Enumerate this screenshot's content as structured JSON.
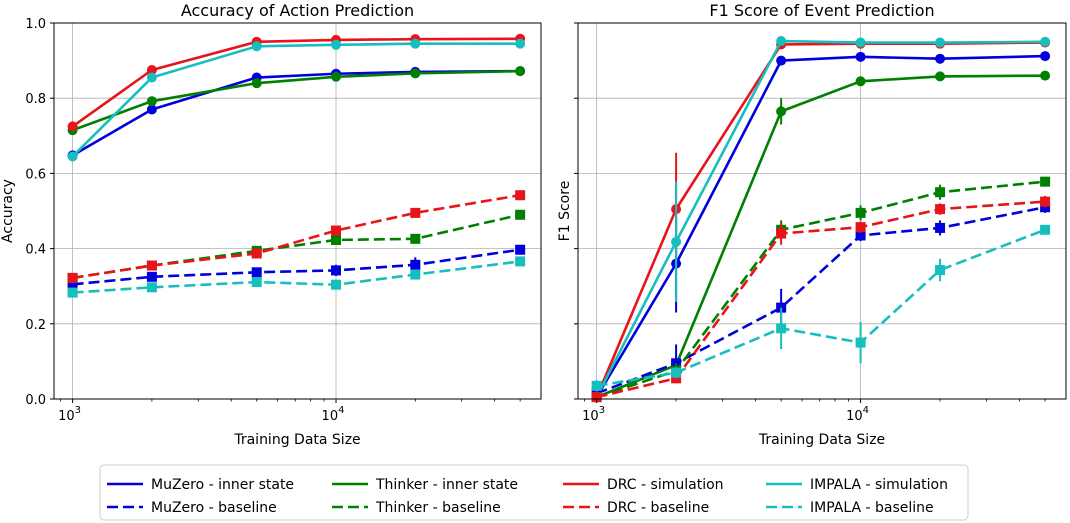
{
  "chart_data": [
    {
      "type": "line",
      "title": "Accuracy of Action Prediction",
      "xlabel": "Training Data Size",
      "ylabel": "Accuracy",
      "xscale": "log",
      "xlim": [
        850,
        60000
      ],
      "ylim": [
        0,
        1.0
      ],
      "xticks": [
        {
          "value": 1000,
          "base": "10",
          "exp": "3"
        },
        {
          "value": 10000,
          "base": "10",
          "exp": "4"
        }
      ],
      "yticks": [
        "0.0",
        "0.2",
        "0.4",
        "0.6",
        "0.8",
        "1.0"
      ],
      "grid": true,
      "x": [
        1000,
        2000,
        5000,
        10000,
        20000,
        50000
      ],
      "series": [
        {
          "name": "MuZero - inner state",
          "color": "#0000dd",
          "style": "solid",
          "marker": "circle",
          "values": [
            0.648,
            0.77,
            0.855,
            0.865,
            0.87,
            0.872
          ],
          "err": [
            0,
            0,
            0,
            0,
            0,
            0
          ]
        },
        {
          "name": "Thinker - inner state",
          "color": "#008000",
          "style": "solid",
          "marker": "circle",
          "values": [
            0.715,
            0.792,
            0.84,
            0.857,
            0.866,
            0.872
          ],
          "err": [
            0,
            0,
            0,
            0,
            0,
            0
          ]
        },
        {
          "name": "DRC - simulation",
          "color": "#e8141b",
          "style": "solid",
          "marker": "circle",
          "values": [
            0.725,
            0.875,
            0.95,
            0.955,
            0.957,
            0.958
          ],
          "err": [
            0,
            0,
            0,
            0,
            0,
            0
          ]
        },
        {
          "name": "IMPALA - simulation",
          "color": "#17bebe",
          "style": "solid",
          "marker": "circle",
          "values": [
            0.645,
            0.855,
            0.938,
            0.942,
            0.945,
            0.945
          ],
          "err": [
            0,
            0,
            0,
            0,
            0,
            0
          ]
        },
        {
          "name": "MuZero - baseline",
          "color": "#0000dd",
          "style": "dashed",
          "marker": "square",
          "values": [
            0.305,
            0.325,
            0.337,
            0.342,
            0.357,
            0.397
          ],
          "err": [
            0,
            0,
            0.012,
            0.015,
            0.02,
            0
          ]
        },
        {
          "name": "Thinker - baseline",
          "color": "#008000",
          "style": "dashed",
          "marker": "square",
          "values": [
            0.322,
            0.355,
            0.394,
            0.423,
            0.426,
            0.49
          ],
          "err": [
            0,
            0,
            0,
            0,
            0,
            0
          ]
        },
        {
          "name": "DRC - baseline",
          "color": "#e8141b",
          "style": "dashed",
          "marker": "square",
          "values": [
            0.322,
            0.355,
            0.387,
            0.448,
            0.495,
            0.542
          ],
          "err": [
            0,
            0,
            0,
            0,
            0,
            0
          ]
        },
        {
          "name": "IMPALA - baseline",
          "color": "#17bebe",
          "style": "dashed",
          "marker": "square",
          "values": [
            0.283,
            0.297,
            0.311,
            0.304,
            0.331,
            0.366
          ],
          "err": [
            0,
            0,
            0,
            0,
            0,
            0
          ]
        }
      ]
    },
    {
      "type": "line",
      "title": "F1 Score of Event Prediction",
      "xlabel": "Training Data Size",
      "ylabel": "F1 Score",
      "xscale": "log",
      "xlim": [
        850,
        60000
      ],
      "ylim": [
        0,
        1.0
      ],
      "xticks": [
        {
          "value": 1000,
          "base": "10",
          "exp": "3"
        },
        {
          "value": 10000,
          "base": "10",
          "exp": "4"
        }
      ],
      "yticks": [
        "",
        "",
        "",
        "",
        "",
        ""
      ],
      "grid": true,
      "x": [
        1000,
        2000,
        5000,
        10000,
        20000,
        50000
      ],
      "series": [
        {
          "name": "MuZero - inner state",
          "color": "#0000dd",
          "style": "solid",
          "marker": "circle",
          "values": [
            0.005,
            0.36,
            0.9,
            0.91,
            0.905,
            0.912
          ],
          "err": [
            0,
            0.13,
            0,
            0,
            0,
            0
          ]
        },
        {
          "name": "Thinker - inner state",
          "color": "#008000",
          "style": "solid",
          "marker": "circle",
          "values": [
            0.005,
            0.09,
            0.765,
            0.845,
            0.858,
            0.86
          ],
          "err": [
            0,
            0.02,
            0.035,
            0,
            0,
            0
          ]
        },
        {
          "name": "DRC - simulation",
          "color": "#e8141b",
          "style": "solid",
          "marker": "circle",
          "values": [
            0.005,
            0.505,
            0.943,
            0.945,
            0.945,
            0.948
          ],
          "err": [
            0,
            0.15,
            0,
            0,
            0,
            0
          ]
        },
        {
          "name": "IMPALA - simulation",
          "color": "#17bebe",
          "style": "solid",
          "marker": "circle",
          "values": [
            0.005,
            0.418,
            0.952,
            0.948,
            0.948,
            0.95
          ],
          "err": [
            0,
            0.16,
            0,
            0,
            0,
            0
          ]
        },
        {
          "name": "MuZero - baseline",
          "color": "#0000dd",
          "style": "dashed",
          "marker": "square",
          "values": [
            0.015,
            0.095,
            0.243,
            0.435,
            0.455,
            0.51
          ],
          "err": [
            0,
            0.05,
            0.05,
            0.015,
            0.02,
            0.015
          ]
        },
        {
          "name": "Thinker - baseline",
          "color": "#008000",
          "style": "dashed",
          "marker": "square",
          "values": [
            0.005,
            0.075,
            0.45,
            0.495,
            0.55,
            0.578
          ],
          "err": [
            0,
            0.02,
            0.025,
            0.02,
            0.02,
            0.01
          ]
        },
        {
          "name": "DRC - baseline",
          "color": "#e8141b",
          "style": "dashed",
          "marker": "square",
          "values": [
            0.005,
            0.055,
            0.44,
            0.457,
            0.505,
            0.525
          ],
          "err": [
            0,
            0,
            0.03,
            0.015,
            0.015,
            0.015
          ]
        },
        {
          "name": "IMPALA - baseline",
          "color": "#17bebe",
          "style": "dashed",
          "marker": "square",
          "values": [
            0.035,
            0.07,
            0.188,
            0.15,
            0.343,
            0.45
          ],
          "err": [
            0.015,
            0.015,
            0.055,
            0.055,
            0.03,
            0.01
          ]
        }
      ]
    }
  ],
  "legend": {
    "placement": "bottom",
    "entries": [
      {
        "label": "MuZero - inner state",
        "color": "#0000dd",
        "style": "solid"
      },
      {
        "label": "Thinker - inner state",
        "color": "#008000",
        "style": "solid"
      },
      {
        "label": "DRC - simulation",
        "color": "#e8141b",
        "style": "solid"
      },
      {
        "label": "IMPALA - simulation",
        "color": "#17bebe",
        "style": "solid"
      },
      {
        "label": "MuZero - baseline",
        "color": "#0000dd",
        "style": "dashed"
      },
      {
        "label": "Thinker - baseline",
        "color": "#008000",
        "style": "dashed"
      },
      {
        "label": "DRC - baseline",
        "color": "#e8141b",
        "style": "dashed"
      },
      {
        "label": "IMPALA - baseline",
        "color": "#17bebe",
        "style": "dashed"
      }
    ]
  }
}
